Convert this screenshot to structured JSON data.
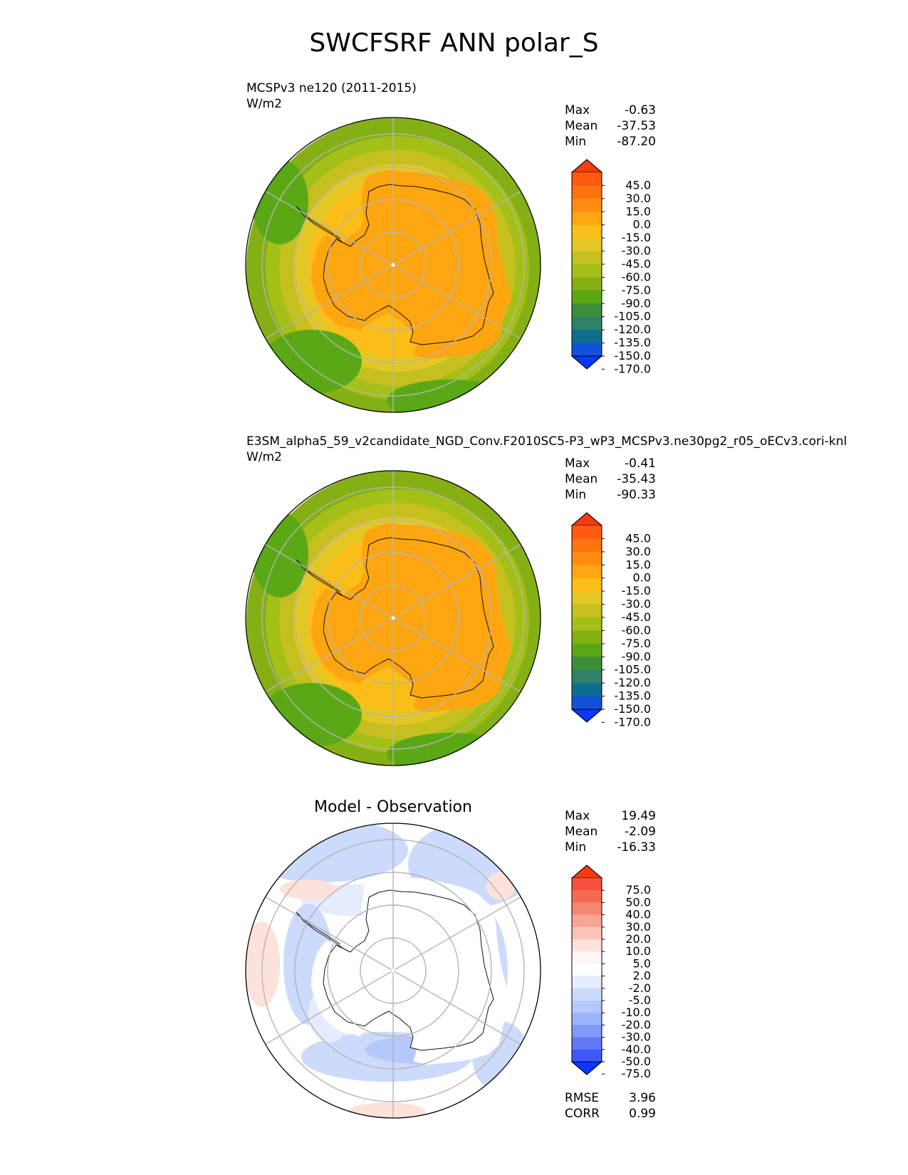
{
  "title": "SWCFSRF ANN polar_S",
  "panels": [
    {
      "id": "test",
      "title_line1": "MCSPv3 ne120 (2011-2015)",
      "units": "W/m2",
      "center_title": "",
      "stats": [
        {
          "label": "Max",
          "value": "-0.63"
        },
        {
          "label": "Mean",
          "value": "-37.53"
        },
        {
          "label": "Min",
          "value": "-87.20"
        }
      ],
      "extra_stats": []
    },
    {
      "id": "reference",
      "title_line1": "E3SM_alpha5_59_v2candidate_NGD_Conv.F2010SC5-P3_wP3_MCSPv3.ne30pg2_r05_oECv3.cori-knl",
      "units": "W/m2",
      "center_title": "",
      "stats": [
        {
          "label": "Max",
          "value": "-0.41"
        },
        {
          "label": "Mean",
          "value": "-35.43"
        },
        {
          "label": "Min",
          "value": "-90.33"
        }
      ],
      "extra_stats": []
    },
    {
      "id": "difference",
      "title_line1": "",
      "units": "",
      "center_title": "Model - Observation",
      "stats": [
        {
          "label": "Max",
          "value": "19.49"
        },
        {
          "label": "Mean",
          "value": "-2.09"
        },
        {
          "label": "Min",
          "value": "-16.33"
        }
      ],
      "extra_stats": [
        {
          "label": "RMSE",
          "value": "3.96"
        },
        {
          "label": "CORR",
          "value": "0.99"
        }
      ]
    }
  ],
  "chart_data": [
    {
      "type": "heatmap",
      "projection": "south polar stereographic",
      "title": "MCSPv3 ne120 (2011-2015)",
      "units": "W/m2",
      "stats": {
        "max": -0.63,
        "mean": -37.53,
        "min": -87.2
      },
      "colorbar": {
        "tick_labels": [
          "45.0",
          "30.0",
          "15.0",
          "0.0",
          "-15.0",
          "-30.0",
          "-45.0",
          "-60.0",
          "-75.0",
          "-90.0",
          "-105.0",
          "-120.0",
          "-135.0",
          "-150.0",
          "-170.0"
        ],
        "colors": [
          "#ff3a0f",
          "#ff5a0f",
          "#ff7210",
          "#ff8c10",
          "#ffa510",
          "#fbbe18",
          "#e3c825",
          "#c5bf20",
          "#a4c018",
          "#85b015",
          "#5aa815",
          "#3c8e38",
          "#30806a",
          "#0d6e90",
          "#1252d8",
          "#0a38ff"
        ],
        "extend": "both"
      },
      "grid": true
    },
    {
      "type": "heatmap",
      "projection": "south polar stereographic",
      "title": "E3SM_alpha5_59_v2candidate_NGD_Conv.F2010SC5-P3_wP3_MCSPv3.ne30pg2_r05_oECv3.cori-knl",
      "units": "W/m2",
      "stats": {
        "max": -0.41,
        "mean": -35.43,
        "min": -90.33
      },
      "colorbar": {
        "tick_labels": [
          "45.0",
          "30.0",
          "15.0",
          "0.0",
          "-15.0",
          "-30.0",
          "-45.0",
          "-60.0",
          "-75.0",
          "-90.0",
          "-105.0",
          "-120.0",
          "-135.0",
          "-150.0",
          "-170.0"
        ],
        "colors": [
          "#ff3a0f",
          "#ff5a0f",
          "#ff7210",
          "#ff8c10",
          "#ffa510",
          "#fbbe18",
          "#e3c825",
          "#c5bf20",
          "#a4c018",
          "#85b015",
          "#5aa815",
          "#3c8e38",
          "#30806a",
          "#0d6e90",
          "#1252d8",
          "#0a38ff"
        ],
        "extend": "both"
      },
      "grid": true
    },
    {
      "type": "heatmap",
      "projection": "south polar stereographic",
      "title": "Model - Observation",
      "stats": {
        "max": 19.49,
        "mean": -2.09,
        "min": -16.33,
        "rmse": 3.96,
        "corr": 0.99
      },
      "colorbar": {
        "tick_labels": [
          "75.0",
          "50.0",
          "40.0",
          "30.0",
          "20.0",
          "10.0",
          "5.0",
          "2.0",
          "-2.0",
          "-5.0",
          "-10.0",
          "-20.0",
          "-30.0",
          "-40.0",
          "-50.0",
          "-75.0"
        ],
        "colors": [
          "#ff3a10",
          "#f5503c",
          "#f56a55",
          "#f58770",
          "#f7a595",
          "#fbc3b8",
          "#fde1db",
          "#fff7f5",
          "#ffffff",
          "#e4ecfd",
          "#ccdafb",
          "#b5c8fb",
          "#9db4fa",
          "#8098f8",
          "#6478f6",
          "#3f58fa",
          "#0a38ff"
        ],
        "extend": "both"
      },
      "grid": true
    }
  ]
}
